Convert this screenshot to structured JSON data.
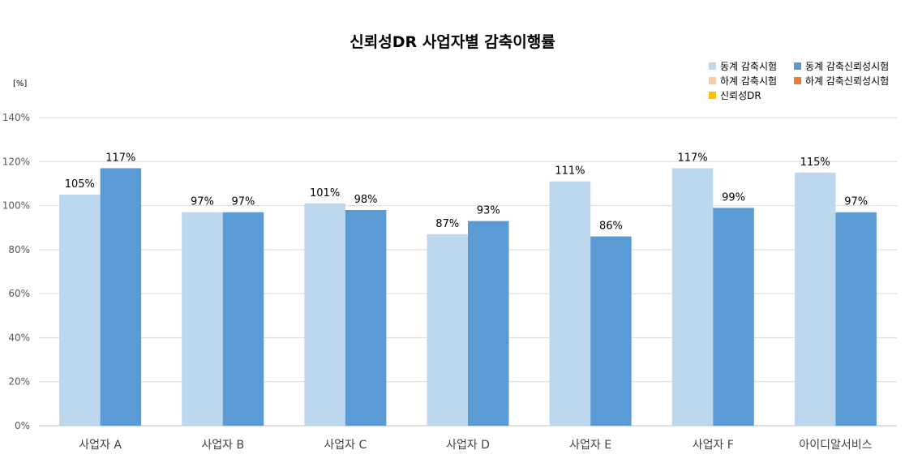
{
  "chart_data": {
    "type": "bar",
    "title": "신뢰성DR 사업자별 감축이행률",
    "ylabel": "[%]",
    "xlabel": "",
    "ylim": [
      0,
      140
    ],
    "ytick_step": 20,
    "ytick_suffix": "%",
    "grid": true,
    "legend_position": "top-right",
    "categories": [
      "사업자 A",
      "사업자 B",
      "사업자 C",
      "사업자 D",
      "사업자 E",
      "사업자 F",
      "아이디알서비스"
    ],
    "legend": [
      {
        "name": "동계 감축시험",
        "color": "#BDD7EE"
      },
      {
        "name": "동계 감축신뢰성시험",
        "color": "#5B9BD5"
      },
      {
        "name": "하계 감축시험",
        "color": "#F8CBAD"
      },
      {
        "name": "하계 감축신뢰성시험",
        "color": "#ED7D31"
      },
      {
        "name": "신뢰성DR",
        "color": "#FFC000"
      }
    ],
    "series": [
      {
        "name": "동계 감축시험",
        "color": "#BDD7EE",
        "values": [
          105,
          97,
          101,
          87,
          111,
          117,
          115
        ],
        "labels": [
          "105%",
          "97%",
          "101%",
          "87%",
          "111%",
          "117%",
          "115%"
        ]
      },
      {
        "name": "동계 감축신뢰성시험",
        "color": "#5B9BD5",
        "values": [
          117,
          97,
          98,
          93,
          86,
          99,
          97
        ],
        "labels": [
          "117%",
          "97%",
          "98%",
          "93%",
          "86%",
          "99%",
          "97%"
        ]
      }
    ]
  }
}
